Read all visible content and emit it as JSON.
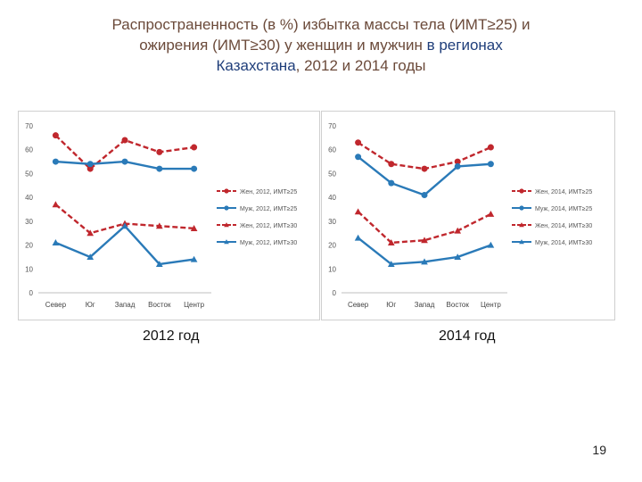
{
  "title": {
    "line1": "Распространенность (в %) избытка массы тела (ИМТ≥25) и",
    "line2a": "ожирения (ИМТ≥30) у женщин и мужчин ",
    "line2b": "в регионах",
    "line3a": "Казахстана",
    "line3b": ", 2012 и 2014 годы"
  },
  "page_number": "19",
  "colors": {
    "women": "#c0272d",
    "men": "#2a7ab8"
  },
  "chart_data": [
    {
      "type": "line",
      "caption": "2012 год",
      "categories": [
        "Север",
        "Юг",
        "Запад",
        "Восток",
        "Центр"
      ],
      "ylim": [
        0,
        70
      ],
      "yticks": [
        0,
        10,
        20,
        30,
        40,
        50,
        60,
        70
      ],
      "legend_position": "right",
      "series": [
        {
          "name": "Жен, 2012, ИМТ≥25",
          "values": [
            66,
            52,
            64,
            59,
            61
          ],
          "color": "#c0272d",
          "dash": true,
          "marker": "circle"
        },
        {
          "name": "Муж, 2012, ИМТ≥25",
          "values": [
            55,
            54,
            55,
            52,
            52
          ],
          "color": "#2a7ab8",
          "dash": false,
          "marker": "circle"
        },
        {
          "name": "Жен, 2012, ИМТ≥30",
          "values": [
            37,
            25,
            29,
            28,
            27
          ],
          "color": "#c0272d",
          "dash": true,
          "marker": "triangle"
        },
        {
          "name": "Муж, 2012, ИМТ≥30",
          "values": [
            21,
            15,
            28,
            12,
            14
          ],
          "color": "#2a7ab8",
          "dash": false,
          "marker": "triangle"
        }
      ]
    },
    {
      "type": "line",
      "caption": "2014 год",
      "categories": [
        "Север",
        "Юг",
        "Запад",
        "Восток",
        "Центр"
      ],
      "ylim": [
        0,
        70
      ],
      "yticks": [
        0,
        10,
        20,
        30,
        40,
        50,
        60,
        70
      ],
      "legend_position": "right",
      "series": [
        {
          "name": "Жен, 2014, ИМТ≥25",
          "values": [
            63,
            54,
            52,
            55,
            61
          ],
          "color": "#c0272d",
          "dash": true,
          "marker": "circle"
        },
        {
          "name": "Муж, 2014, ИМТ≥25",
          "values": [
            57,
            46,
            41,
            53,
            54
          ],
          "color": "#2a7ab8",
          "dash": false,
          "marker": "circle"
        },
        {
          "name": "Жен, 2014, ИМТ≥30",
          "values": [
            34,
            21,
            22,
            26,
            33
          ],
          "color": "#c0272d",
          "dash": true,
          "marker": "triangle"
        },
        {
          "name": "Муж, 2014, ИМТ≥30",
          "values": [
            23,
            12,
            13,
            15,
            20
          ],
          "color": "#2a7ab8",
          "dash": false,
          "marker": "triangle"
        }
      ]
    }
  ]
}
